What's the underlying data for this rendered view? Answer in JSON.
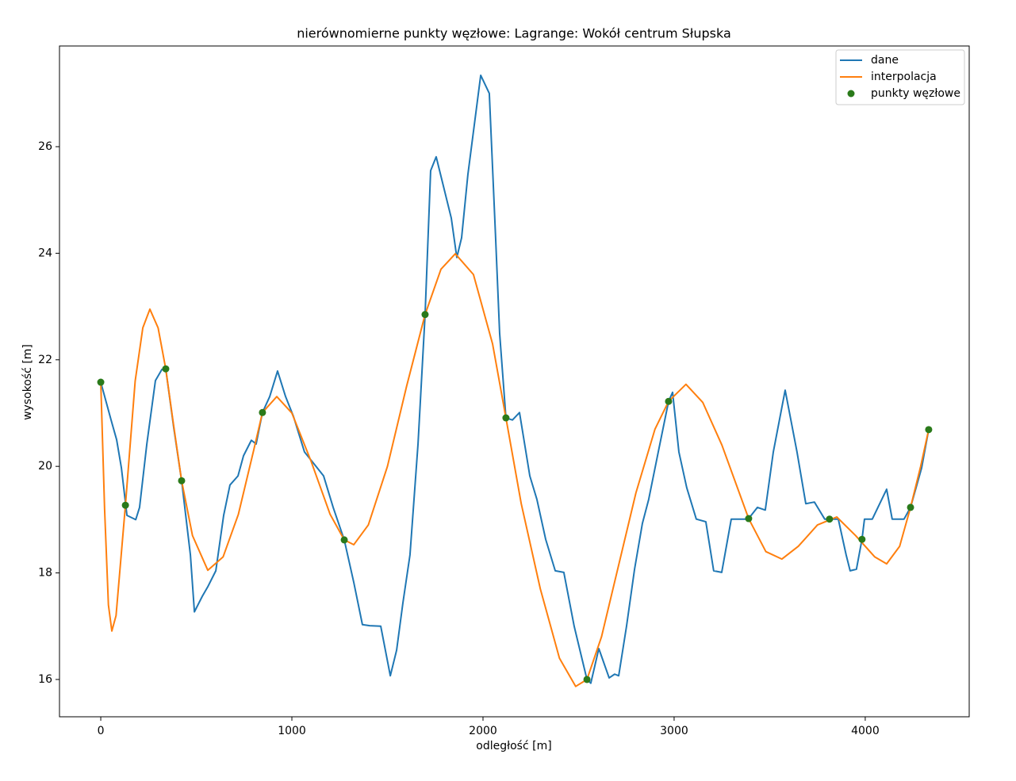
{
  "chart_data": {
    "type": "line",
    "title": "nierównomierne punkty węzłowe: Lagrange: Wokół centrum Słupska",
    "xlabel": "odległość [m]",
    "ylabel": "wysokość [m]",
    "xlim": [
      -216,
      4544
    ],
    "ylim": [
      15.3,
      27.89
    ],
    "xticks": [
      0,
      1000,
      2000,
      3000,
      4000
    ],
    "yticks": [
      16,
      18,
      20,
      22,
      24,
      26
    ],
    "grid": false,
    "legend": "upper right",
    "series": [
      {
        "name": "dane",
        "color": "#1f77b4",
        "type": "line",
        "x": [
          0,
          54,
          83,
          108,
          137,
          183,
          203,
          241,
          286,
          320,
          340,
          382,
          423,
          469,
          490,
          531,
          560,
          602,
          643,
          676,
          718,
          747,
          788,
          813,
          846,
          884,
          925,
          967,
          1008,
          1066,
          1124,
          1166,
          1216,
          1274,
          1324,
          1369,
          1407,
          1465,
          1515,
          1548,
          1581,
          1618,
          1660,
          1697,
          1726,
          1755,
          1788,
          1834,
          1863,
          1888,
          1921,
          1988,
          2033,
          2066,
          2087,
          2120,
          2154,
          2191,
          2245,
          2282,
          2328,
          2378,
          2423,
          2477,
          2544,
          2564,
          2606,
          2660,
          2689,
          2710,
          2751,
          2793,
          2834,
          2867,
          2917,
          2971,
          2992,
          3025,
          3066,
          3116,
          3166,
          3207,
          3249,
          3299,
          3373,
          3390,
          3436,
          3477,
          3519,
          3581,
          3643,
          3689,
          3734,
          3788,
          3813,
          3859,
          3900,
          3921,
          3954,
          3983,
          3996,
          4037,
          4112,
          4141,
          4203,
          4237,
          4295,
          4332
        ],
        "values": [
          21.58,
          20.87,
          20.5,
          19.97,
          19.08,
          19.0,
          19.23,
          20.42,
          21.61,
          21.82,
          21.83,
          20.72,
          19.73,
          18.34,
          17.27,
          17.56,
          17.74,
          18.04,
          19.08,
          19.65,
          19.82,
          20.2,
          20.49,
          20.42,
          21.01,
          21.31,
          21.79,
          21.31,
          20.94,
          20.27,
          20.01,
          19.82,
          19.23,
          18.62,
          17.82,
          17.03,
          17.01,
          17.0,
          16.07,
          16.55,
          17.44,
          18.34,
          20.42,
          22.85,
          25.55,
          25.81,
          25.33,
          24.66,
          23.92,
          24.29,
          25.48,
          27.34,
          27.0,
          24.29,
          22.5,
          20.91,
          20.87,
          21.01,
          19.82,
          19.38,
          18.63,
          18.04,
          18.01,
          17.0,
          16.0,
          15.93,
          16.58,
          16.03,
          16.1,
          16.07,
          17.0,
          18.07,
          18.93,
          19.38,
          20.27,
          21.22,
          21.39,
          20.27,
          19.6,
          19.01,
          18.96,
          18.04,
          18.01,
          19.01,
          19.01,
          19.02,
          19.23,
          19.18,
          20.27,
          21.43,
          20.27,
          19.3,
          19.33,
          19.01,
          19.01,
          19.01,
          18.34,
          18.04,
          18.07,
          18.63,
          19.01,
          19.01,
          19.57,
          19.01,
          19.01,
          19.23,
          19.97,
          20.69
        ]
      },
      {
        "name": "interpolacja",
        "color": "#ff7f0e",
        "type": "line",
        "x": [
          0,
          20,
          40,
          58,
          80,
          129,
          180,
          220,
          257,
          300,
          340,
          380,
          423,
          480,
          560,
          640,
          720,
          800,
          846,
          921,
          1000,
          1100,
          1200,
          1274,
          1324,
          1400,
          1500,
          1600,
          1697,
          1780,
          1855,
          1950,
          2050,
          2120,
          2200,
          2300,
          2400,
          2485,
          2544,
          2620,
          2700,
          2800,
          2900,
          2971,
          3062,
          3150,
          3250,
          3390,
          3480,
          3564,
          3650,
          3750,
          3851,
          3950,
          4050,
          4112,
          4180,
          4237,
          4290,
          4332
        ],
        "values": [
          21.58,
          19.2,
          17.4,
          16.91,
          17.2,
          19.27,
          21.6,
          22.6,
          22.95,
          22.6,
          21.83,
          20.8,
          19.73,
          18.7,
          18.05,
          18.3,
          19.1,
          20.3,
          21.01,
          21.31,
          21.0,
          20.1,
          19.1,
          18.62,
          18.53,
          18.9,
          20.0,
          21.5,
          22.85,
          23.7,
          23.99,
          23.6,
          22.3,
          20.91,
          19.3,
          17.7,
          16.4,
          15.87,
          16.0,
          16.8,
          18.0,
          19.5,
          20.7,
          21.22,
          21.54,
          21.2,
          20.4,
          19.02,
          18.4,
          18.26,
          18.5,
          18.9,
          19.05,
          18.7,
          18.3,
          18.17,
          18.5,
          19.23,
          20.0,
          20.69
        ]
      },
      {
        "name": "punkty węzłowe",
        "color": "#2a7a1a",
        "type": "scatter",
        "x": [
          0,
          129,
          340,
          423,
          846,
          1274,
          1697,
          2120,
          2544,
          2971,
          3390,
          3813,
          3983,
          4237,
          4332
        ],
        "values": [
          21.58,
          19.27,
          21.83,
          19.73,
          21.01,
          18.62,
          22.85,
          20.91,
          16.0,
          21.22,
          19.02,
          19.01,
          18.63,
          19.23,
          20.69
        ]
      }
    ]
  }
}
